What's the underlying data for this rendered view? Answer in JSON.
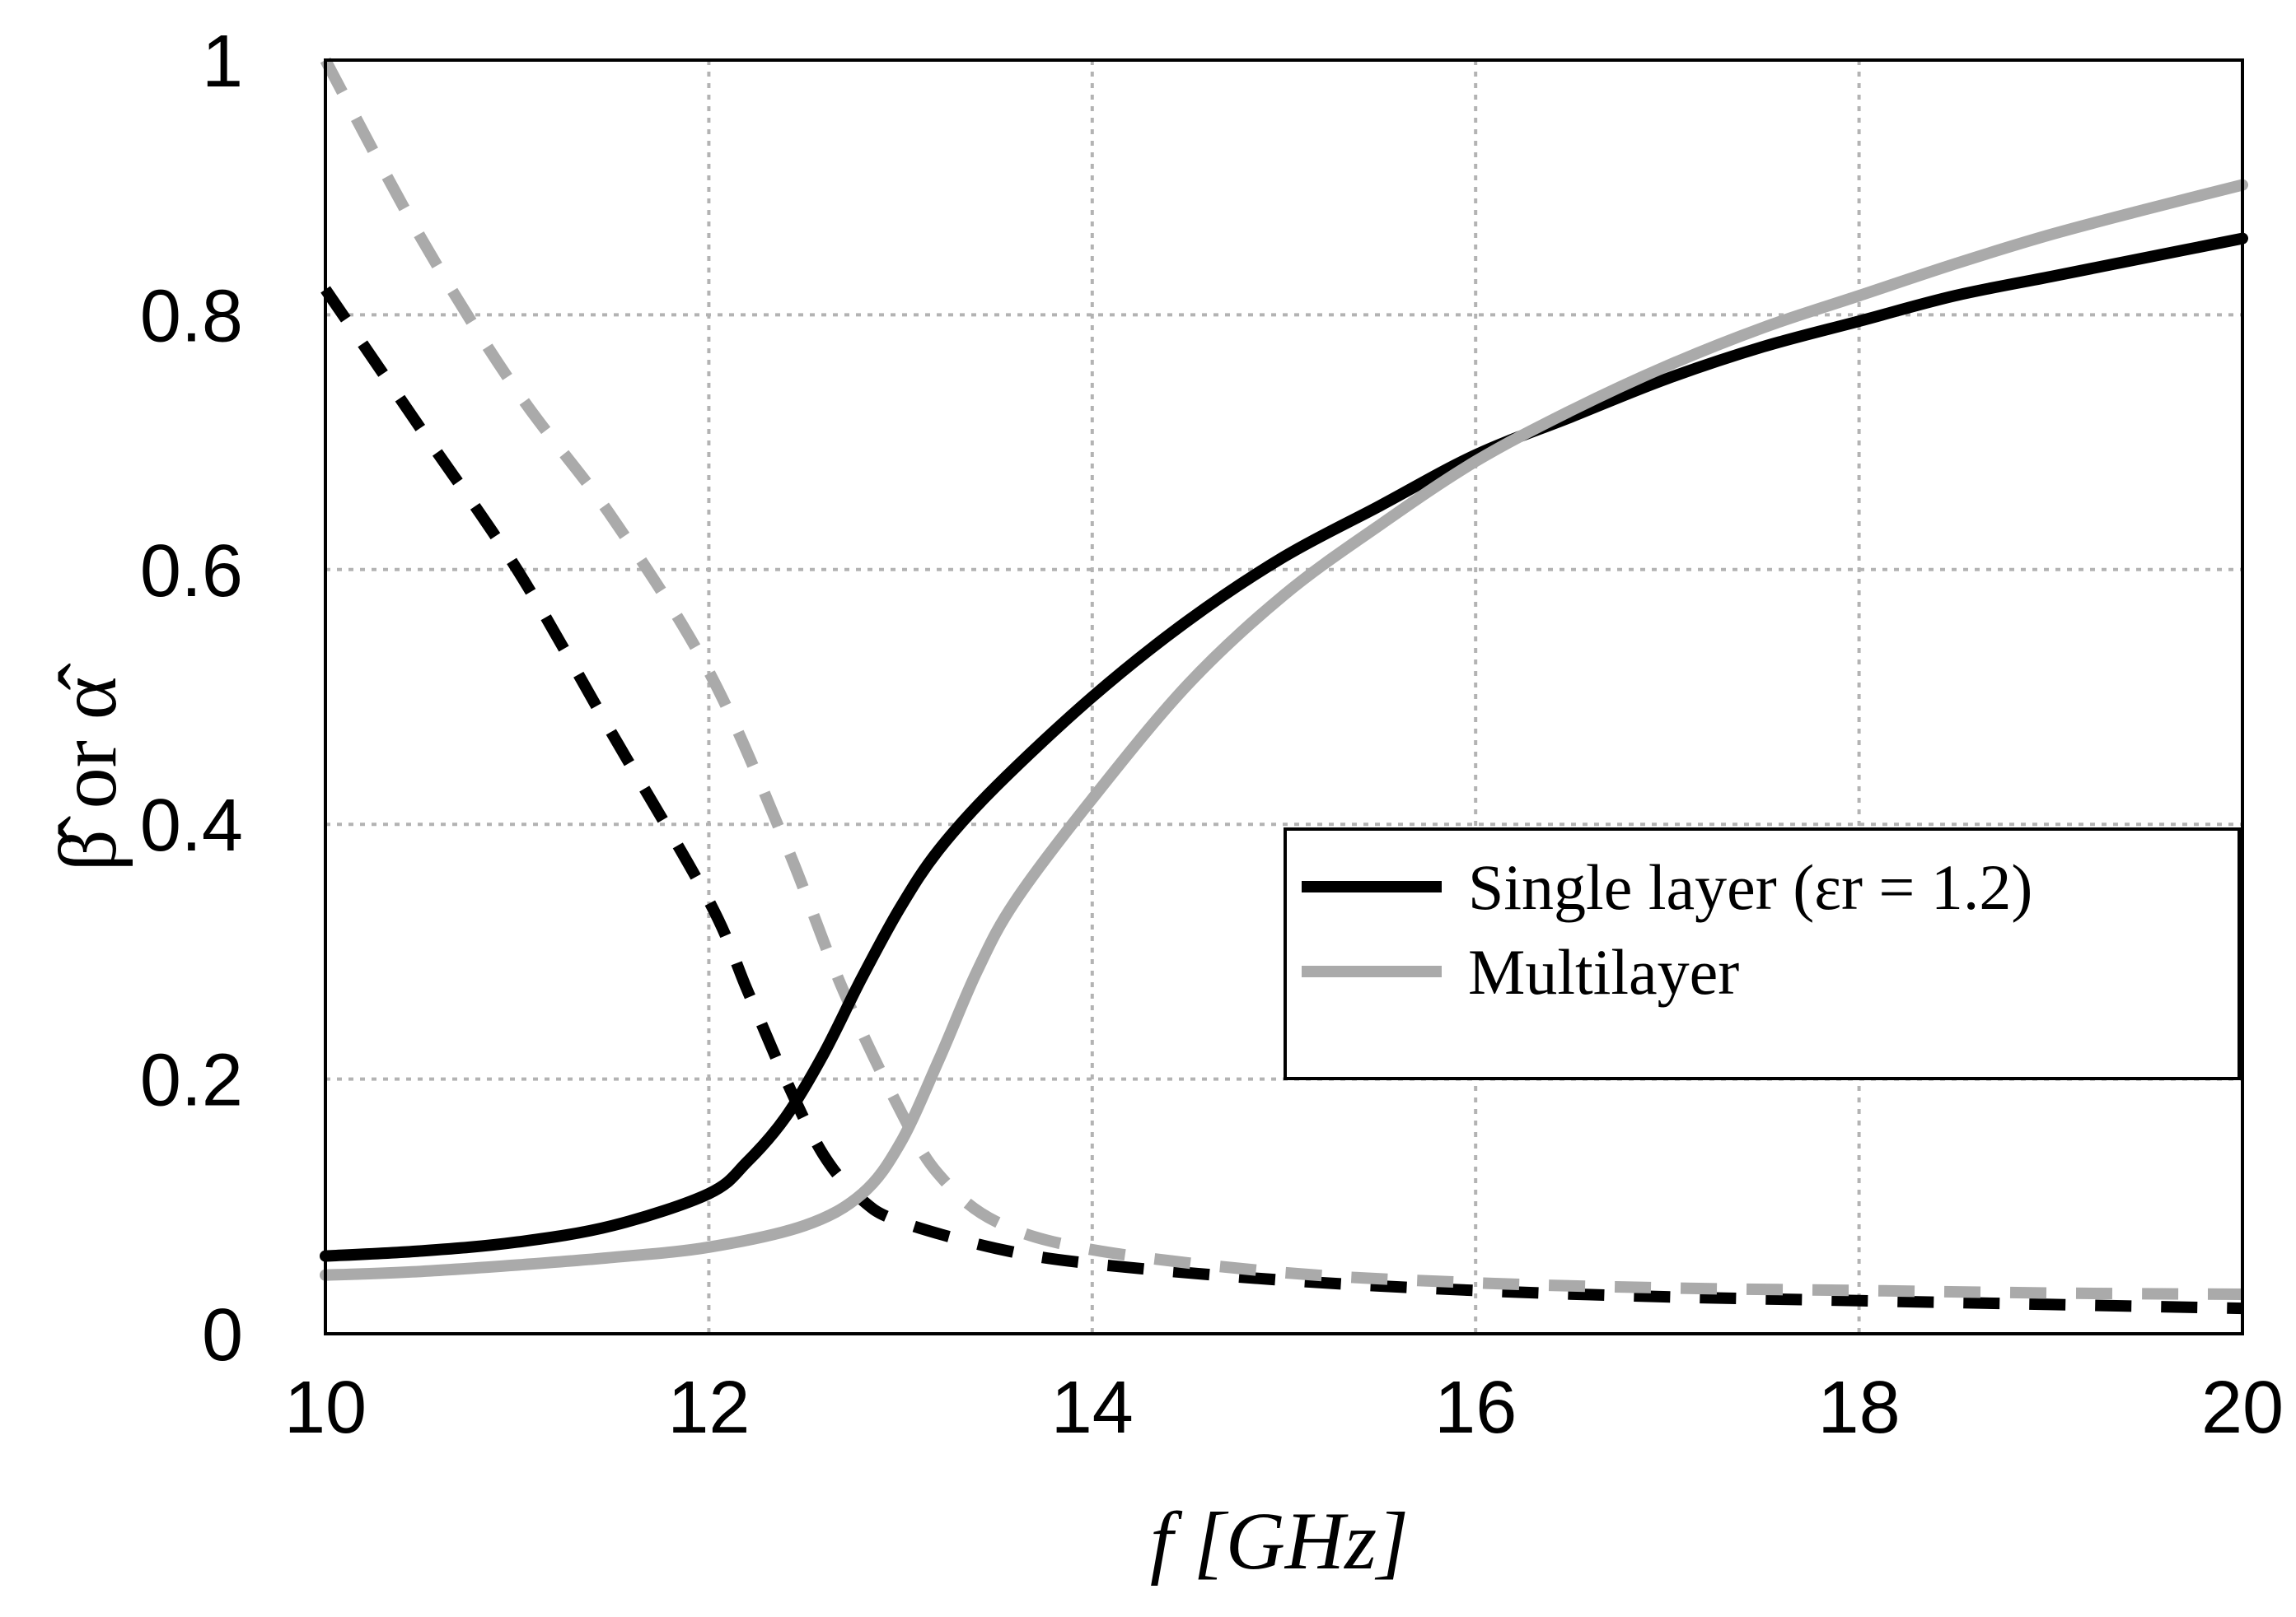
{
  "chart_data": {
    "type": "line",
    "title": "",
    "xlabel": "f  [GHz]",
    "ylabel": "β̂ or α̂",
    "xlim": [
      10,
      20
    ],
    "ylim": [
      0,
      1
    ],
    "xticks": [
      10,
      12,
      14,
      16,
      18,
      20
    ],
    "yticks": [
      0,
      0.2,
      0.4,
      0.6,
      0.8,
      1
    ],
    "xtick_labels": [
      "10",
      "12",
      "14",
      "16",
      "18",
      "20"
    ],
    "ytick_labels": [
      "0",
      "0.2",
      "0.4",
      "0.6",
      "0.8",
      "1"
    ],
    "grid": true,
    "legend_position": "center-right",
    "legend": [
      {
        "label": "Single layer (εr = 1.2)",
        "color": "#000000"
      },
      {
        "label": "Multilayer",
        "color": "#aaaaaa"
      }
    ],
    "series": [
      {
        "name": "Single layer β̂",
        "color": "#000000",
        "style": "solid",
        "x": [
          10,
          10.5,
          11,
          11.5,
          12,
          12.2,
          12.4,
          12.6,
          12.8,
          13,
          13.2,
          13.5,
          14,
          14.5,
          15,
          15.5,
          16,
          16.5,
          17,
          17.5,
          18,
          18.5,
          19,
          19.5,
          20
        ],
        "y": [
          0.061,
          0.065,
          0.072,
          0.085,
          0.11,
          0.135,
          0.17,
          0.22,
          0.28,
          0.335,
          0.38,
          0.43,
          0.5,
          0.56,
          0.61,
          0.65,
          0.69,
          0.72,
          0.75,
          0.775,
          0.795,
          0.815,
          0.83,
          0.845,
          0.86
        ]
      },
      {
        "name": "Single layer α̂",
        "color": "#000000",
        "style": "dashed",
        "x": [
          10,
          10.5,
          11,
          11.5,
          12,
          12.2,
          12.4,
          12.6,
          12.8,
          13,
          13.5,
          14,
          15,
          16,
          17,
          18,
          19,
          20
        ],
        "y": [
          0.82,
          0.71,
          0.6,
          0.47,
          0.34,
          0.27,
          0.2,
          0.14,
          0.105,
          0.088,
          0.067,
          0.055,
          0.042,
          0.034,
          0.029,
          0.026,
          0.023,
          0.02
        ]
      },
      {
        "name": "Multilayer β̂",
        "color": "#aaaaaa",
        "style": "solid",
        "x": [
          10,
          10.5,
          11,
          11.5,
          12,
          12.5,
          12.8,
          13,
          13.2,
          13.4,
          13.6,
          14,
          14.5,
          15,
          15.5,
          16,
          16.5,
          17,
          17.5,
          18,
          18.5,
          19,
          19.5,
          20
        ],
        "y": [
          0.046,
          0.049,
          0.054,
          0.06,
          0.068,
          0.085,
          0.11,
          0.15,
          0.215,
          0.285,
          0.34,
          0.42,
          0.51,
          0.58,
          0.635,
          0.685,
          0.725,
          0.76,
          0.79,
          0.815,
          0.84,
          0.863,
          0.883,
          0.902
        ]
      },
      {
        "name": "Multilayer α̂",
        "color": "#aaaaaa",
        "style": "dashed",
        "x": [
          10,
          10.5,
          11,
          11.5,
          12,
          12.4,
          12.7,
          13,
          13.2,
          13.5,
          14,
          15,
          16,
          17,
          18,
          19,
          20
        ],
        "y": [
          1.0,
          0.86,
          0.74,
          0.64,
          0.52,
          0.385,
          0.27,
          0.175,
          0.125,
          0.088,
          0.066,
          0.048,
          0.04,
          0.036,
          0.034,
          0.032,
          0.031
        ]
      }
    ]
  }
}
